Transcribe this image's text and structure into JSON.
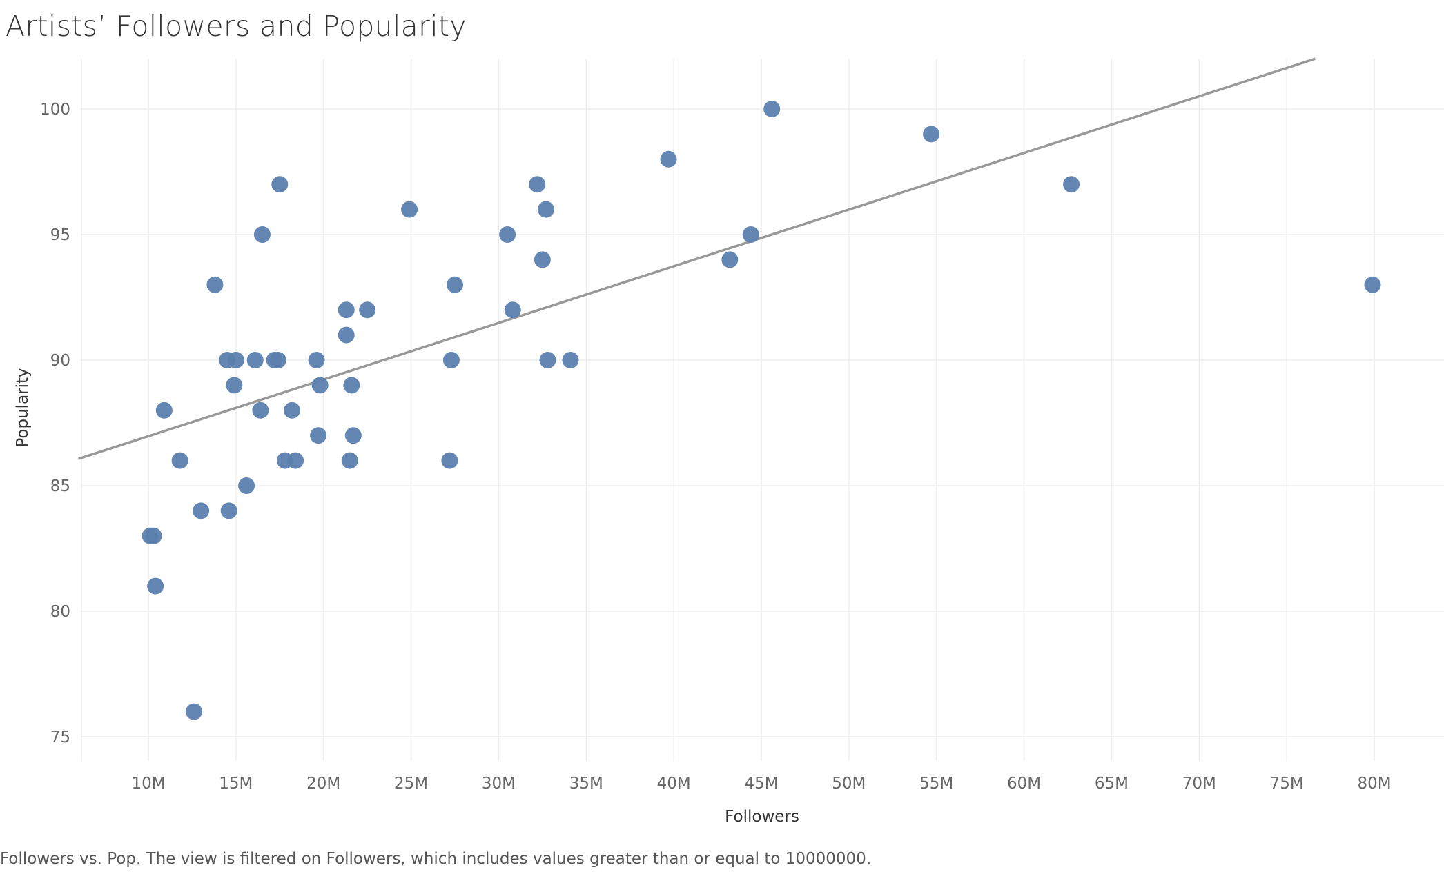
{
  "chart_data": {
    "type": "scatter",
    "title": "Artists’ Followers and Popularity",
    "xlabel": "Followers",
    "ylabel": "Popularity",
    "caption": "Followers vs. Pop. The view is filtered on Followers, which includes values greater than or equal to 10000000.",
    "xlim": [
      6000000,
      82000000
    ],
    "ylim": [
      74,
      102
    ],
    "x_ticks": [
      10000000,
      15000000,
      20000000,
      25000000,
      30000000,
      35000000,
      40000000,
      45000000,
      50000000,
      55000000,
      60000000,
      65000000,
      70000000,
      75000000,
      80000000
    ],
    "x_tick_labels": [
      "10M",
      "15M",
      "20M",
      "25M",
      "30M",
      "35M",
      "40M",
      "45M",
      "50M",
      "55M",
      "60M",
      "65M",
      "70M",
      "75M",
      "80M"
    ],
    "y_ticks": [
      75,
      80,
      85,
      90,
      95,
      100
    ],
    "y_tick_labels": [
      "75",
      "80",
      "85",
      "90",
      "95",
      "100"
    ],
    "grid": true,
    "point_color": "#5b7fae",
    "trend_color": "#999999",
    "trend_line": {
      "slope_per_million": 0.2256,
      "intercept_at_10M": 86.97
    },
    "points": [
      {
        "x": 10100000,
        "y": 83
      },
      {
        "x": 10300000,
        "y": 83
      },
      {
        "x": 10400000,
        "y": 81
      },
      {
        "x": 10900000,
        "y": 88
      },
      {
        "x": 11800000,
        "y": 86
      },
      {
        "x": 12600000,
        "y": 76
      },
      {
        "x": 13000000,
        "y": 84
      },
      {
        "x": 13800000,
        "y": 93
      },
      {
        "x": 14500000,
        "y": 90
      },
      {
        "x": 14600000,
        "y": 84
      },
      {
        "x": 14900000,
        "y": 89
      },
      {
        "x": 15000000,
        "y": 90
      },
      {
        "x": 15600000,
        "y": 85
      },
      {
        "x": 16100000,
        "y": 90
      },
      {
        "x": 16400000,
        "y": 88
      },
      {
        "x": 16500000,
        "y": 95
      },
      {
        "x": 17200000,
        "y": 90
      },
      {
        "x": 17400000,
        "y": 90
      },
      {
        "x": 17500000,
        "y": 97
      },
      {
        "x": 17800000,
        "y": 86
      },
      {
        "x": 18200000,
        "y": 88
      },
      {
        "x": 18400000,
        "y": 86
      },
      {
        "x": 19600000,
        "y": 90
      },
      {
        "x": 19700000,
        "y": 87
      },
      {
        "x": 19800000,
        "y": 89
      },
      {
        "x": 21300000,
        "y": 92
      },
      {
        "x": 21300000,
        "y": 91
      },
      {
        "x": 21500000,
        "y": 86
      },
      {
        "x": 21600000,
        "y": 89
      },
      {
        "x": 21700000,
        "y": 87
      },
      {
        "x": 22500000,
        "y": 92
      },
      {
        "x": 24900000,
        "y": 96
      },
      {
        "x": 27200000,
        "y": 86
      },
      {
        "x": 27300000,
        "y": 90
      },
      {
        "x": 27500000,
        "y": 93
      },
      {
        "x": 30500000,
        "y": 95
      },
      {
        "x": 30800000,
        "y": 92
      },
      {
        "x": 32200000,
        "y": 97
      },
      {
        "x": 32500000,
        "y": 94
      },
      {
        "x": 32700000,
        "y": 96
      },
      {
        "x": 32800000,
        "y": 90
      },
      {
        "x": 34100000,
        "y": 90
      },
      {
        "x": 39700000,
        "y": 98
      },
      {
        "x": 43200000,
        "y": 94
      },
      {
        "x": 44400000,
        "y": 95
      },
      {
        "x": 45600000,
        "y": 100
      },
      {
        "x": 54700000,
        "y": 99
      },
      {
        "x": 62700000,
        "y": 97
      },
      {
        "x": 79900000,
        "y": 93
      }
    ]
  }
}
